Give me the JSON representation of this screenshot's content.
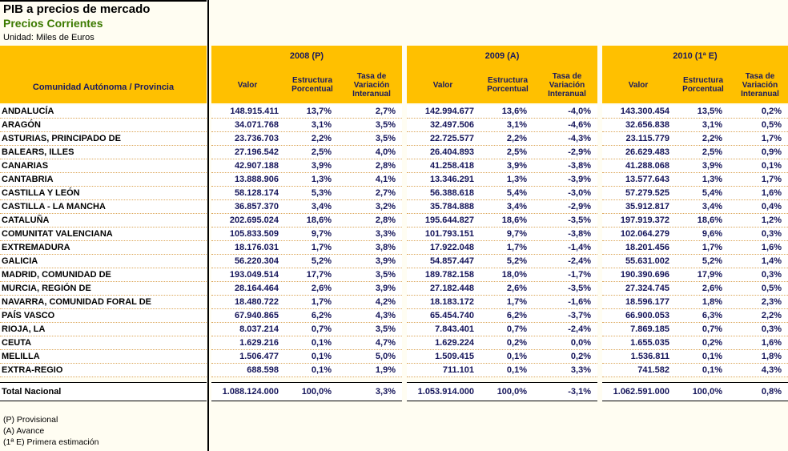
{
  "title": "PIB a precios de mercado",
  "subtitle": "Precios Corrientes",
  "unit": "Unidad: Miles de Euros",
  "header": {
    "row_label": "Comunidad Autónoma / Provincia",
    "groups": [
      {
        "label": "2008 (P)"
      },
      {
        "label": "2009 (A)"
      },
      {
        "label": "2010 (1ª E)"
      }
    ],
    "subcolumns": [
      "Valor",
      "Estructura Porcentual",
      "Tasa de Variación Interanual"
    ]
  },
  "rows": [
    {
      "name": "ANDALUCÍA",
      "values": [
        [
          "148.915.411",
          "13,7%",
          "2,7%"
        ],
        [
          "142.994.677",
          "13,6%",
          "-4,0%"
        ],
        [
          "143.300.454",
          "13,5%",
          "0,2%"
        ]
      ]
    },
    {
      "name": "ARAGÓN",
      "values": [
        [
          "34.071.768",
          "3,1%",
          "3,5%"
        ],
        [
          "32.497.506",
          "3,1%",
          "-4,6%"
        ],
        [
          "32.656.838",
          "3,1%",
          "0,5%"
        ]
      ]
    },
    {
      "name": "ASTURIAS, PRINCIPADO DE",
      "values": [
        [
          "23.736.703",
          "2,2%",
          "3,5%"
        ],
        [
          "22.725.577",
          "2,2%",
          "-4,3%"
        ],
        [
          "23.115.779",
          "2,2%",
          "1,7%"
        ]
      ]
    },
    {
      "name": "BALEARS, ILLES",
      "values": [
        [
          "27.196.542",
          "2,5%",
          "4,0%"
        ],
        [
          "26.404.893",
          "2,5%",
          "-2,9%"
        ],
        [
          "26.629.483",
          "2,5%",
          "0,9%"
        ]
      ]
    },
    {
      "name": "CANARIAS",
      "values": [
        [
          "42.907.188",
          "3,9%",
          "2,8%"
        ],
        [
          "41.258.418",
          "3,9%",
          "-3,8%"
        ],
        [
          "41.288.068",
          "3,9%",
          "0,1%"
        ]
      ]
    },
    {
      "name": "CANTABRIA",
      "values": [
        [
          "13.888.906",
          "1,3%",
          "4,1%"
        ],
        [
          "13.346.291",
          "1,3%",
          "-3,9%"
        ],
        [
          "13.577.643",
          "1,3%",
          "1,7%"
        ]
      ]
    },
    {
      "name": "CASTILLA Y LEÓN",
      "values": [
        [
          "58.128.174",
          "5,3%",
          "2,7%"
        ],
        [
          "56.388.618",
          "5,4%",
          "-3,0%"
        ],
        [
          "57.279.525",
          "5,4%",
          "1,6%"
        ]
      ]
    },
    {
      "name": "CASTILLA - LA MANCHA",
      "values": [
        [
          "36.857.370",
          "3,4%",
          "3,2%"
        ],
        [
          "35.784.888",
          "3,4%",
          "-2,9%"
        ],
        [
          "35.912.817",
          "3,4%",
          "0,4%"
        ]
      ]
    },
    {
      "name": "CATALUÑA",
      "values": [
        [
          "202.695.024",
          "18,6%",
          "2,8%"
        ],
        [
          "195.644.827",
          "18,6%",
          "-3,5%"
        ],
        [
          "197.919.372",
          "18,6%",
          "1,2%"
        ]
      ]
    },
    {
      "name": "COMUNITAT VALENCIANA",
      "values": [
        [
          "105.833.509",
          "9,7%",
          "3,3%"
        ],
        [
          "101.793.151",
          "9,7%",
          "-3,8%"
        ],
        [
          "102.064.279",
          "9,6%",
          "0,3%"
        ]
      ]
    },
    {
      "name": "EXTREMADURA",
      "values": [
        [
          "18.176.031",
          "1,7%",
          "3,8%"
        ],
        [
          "17.922.048",
          "1,7%",
          "-1,4%"
        ],
        [
          "18.201.456",
          "1,7%",
          "1,6%"
        ]
      ]
    },
    {
      "name": "GALICIA",
      "values": [
        [
          "56.220.304",
          "5,2%",
          "3,9%"
        ],
        [
          "54.857.447",
          "5,2%",
          "-2,4%"
        ],
        [
          "55.631.002",
          "5,2%",
          "1,4%"
        ]
      ]
    },
    {
      "name": "MADRID, COMUNIDAD DE",
      "values": [
        [
          "193.049.514",
          "17,7%",
          "3,5%"
        ],
        [
          "189.782.158",
          "18,0%",
          "-1,7%"
        ],
        [
          "190.390.696",
          "17,9%",
          "0,3%"
        ]
      ]
    },
    {
      "name": "MURCIA, REGIÓN DE",
      "values": [
        [
          "28.164.464",
          "2,6%",
          "3,9%"
        ],
        [
          "27.182.448",
          "2,6%",
          "-3,5%"
        ],
        [
          "27.324.745",
          "2,6%",
          "0,5%"
        ]
      ]
    },
    {
      "name": "NAVARRA, COMUNIDAD FORAL DE",
      "values": [
        [
          "18.480.722",
          "1,7%",
          "4,2%"
        ],
        [
          "18.183.172",
          "1,7%",
          "-1,6%"
        ],
        [
          "18.596.177",
          "1,8%",
          "2,3%"
        ]
      ]
    },
    {
      "name": "PAÍS VASCO",
      "values": [
        [
          "67.940.865",
          "6,2%",
          "4,3%"
        ],
        [
          "65.454.740",
          "6,2%",
          "-3,7%"
        ],
        [
          "66.900.053",
          "6,3%",
          "2,2%"
        ]
      ]
    },
    {
      "name": "RIOJA, LA",
      "values": [
        [
          "8.037.214",
          "0,7%",
          "3,5%"
        ],
        [
          "7.843.401",
          "0,7%",
          "-2,4%"
        ],
        [
          "7.869.185",
          "0,7%",
          "0,3%"
        ]
      ]
    },
    {
      "name": "CEUTA",
      "values": [
        [
          "1.629.216",
          "0,1%",
          "4,7%"
        ],
        [
          "1.629.224",
          "0,2%",
          "0,0%"
        ],
        [
          "1.655.035",
          "0,2%",
          "1,6%"
        ]
      ]
    },
    {
      "name": "MELILLA",
      "values": [
        [
          "1.506.477",
          "0,1%",
          "5,0%"
        ],
        [
          "1.509.415",
          "0,1%",
          "0,2%"
        ],
        [
          "1.536.811",
          "0,1%",
          "1,8%"
        ]
      ]
    },
    {
      "name": "EXTRA-REGIO",
      "values": [
        [
          "688.598",
          "0,1%",
          "1,9%"
        ],
        [
          "711.101",
          "0,1%",
          "3,3%"
        ],
        [
          "741.582",
          "0,1%",
          "4,3%"
        ]
      ]
    }
  ],
  "total": {
    "name": "Total Nacional",
    "values": [
      [
        "1.088.124.000",
        "100,0%",
        "3,3%"
      ],
      [
        "1.053.914.000",
        "100,0%",
        "-3,1%"
      ],
      [
        "1.062.591.000",
        "100,0%",
        "0,8%"
      ]
    ]
  },
  "footnotes": [
    "(P) Provisional",
    "(A) Avance",
    "(1ª E) Primera estimación"
  ],
  "colors": {
    "header_bg": "#FFC000",
    "navy": "#1a1a5e",
    "num_navy": "#14145a",
    "green": "#3c7a00",
    "dot": "#dca75a",
    "page_bg": "#fffdf2"
  }
}
